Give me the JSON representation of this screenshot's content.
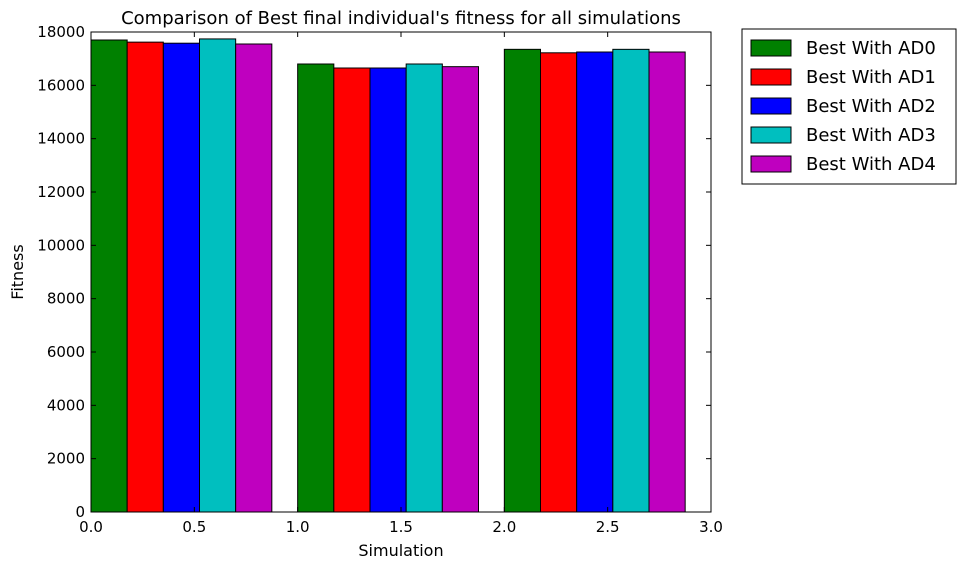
{
  "chart_data": {
    "type": "bar",
    "title": "Comparison of Best final individual's fitness for all simulations",
    "xlabel": "Simulation",
    "ylabel": "Fitness",
    "xlim": [
      0.0,
      3.0
    ],
    "ylim": [
      0,
      18000
    ],
    "x_ticks": [
      "0.0",
      "0.5",
      "1.0",
      "1.5",
      "2.0",
      "2.5",
      "3.0"
    ],
    "y_ticks": [
      "0",
      "2000",
      "4000",
      "6000",
      "8000",
      "10000",
      "12000",
      "14000",
      "16000",
      "18000"
    ],
    "bar_width": 0.175,
    "group_starts": [
      0.0,
      1.0,
      2.0
    ],
    "grid": false,
    "legend_position": "outside-top-right",
    "series": [
      {
        "name": "Best With AD0",
        "color": "#008000",
        "values": [
          17700,
          16800,
          17350
        ]
      },
      {
        "name": "Best With AD1",
        "color": "#ff0000",
        "values": [
          17620,
          16650,
          17220
        ]
      },
      {
        "name": "Best With AD2",
        "color": "#0000ff",
        "values": [
          17580,
          16650,
          17250
        ]
      },
      {
        "name": "Best With AD3",
        "color": "#00bfbf",
        "values": [
          17740,
          16800,
          17350
        ]
      },
      {
        "name": "Best With AD4",
        "color": "#bf00bf",
        "values": [
          17550,
          16700,
          17250
        ]
      }
    ]
  }
}
